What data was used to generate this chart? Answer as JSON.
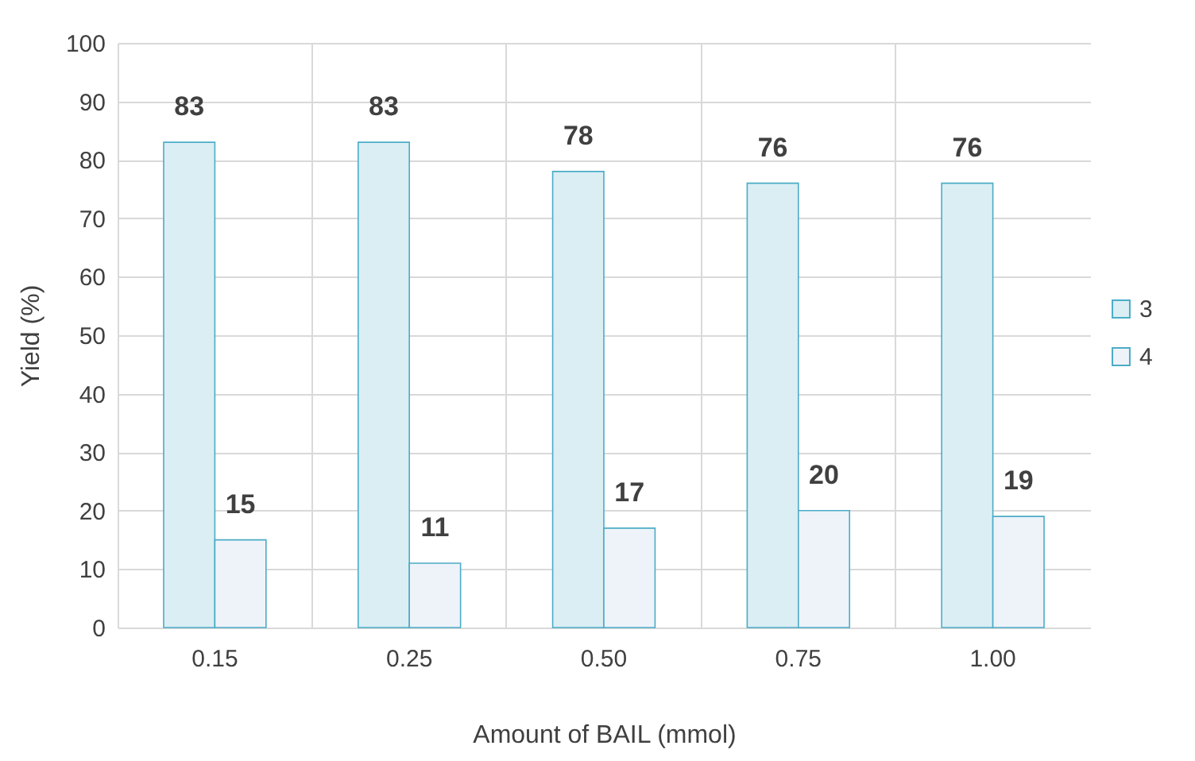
{
  "chart_data": {
    "type": "bar",
    "xlabel": "Amount of BAIL (mmol)",
    "ylabel": "Yield (%)",
    "categories": [
      "0.15",
      "0.25",
      "0.50",
      "0.75",
      "1.00"
    ],
    "series": [
      {
        "name": "3",
        "color": "#dbeef4",
        "values": [
          83,
          83,
          78,
          76,
          76
        ]
      },
      {
        "name": "4",
        "color": "#eef3fa",
        "values": [
          15,
          11,
          17,
          20,
          19
        ]
      }
    ],
    "ylim": [
      0,
      100
    ],
    "yticks": [
      0,
      10,
      20,
      30,
      40,
      50,
      60,
      70,
      80,
      90,
      100
    ],
    "grid": true,
    "legend": "right",
    "data_labels": true
  }
}
